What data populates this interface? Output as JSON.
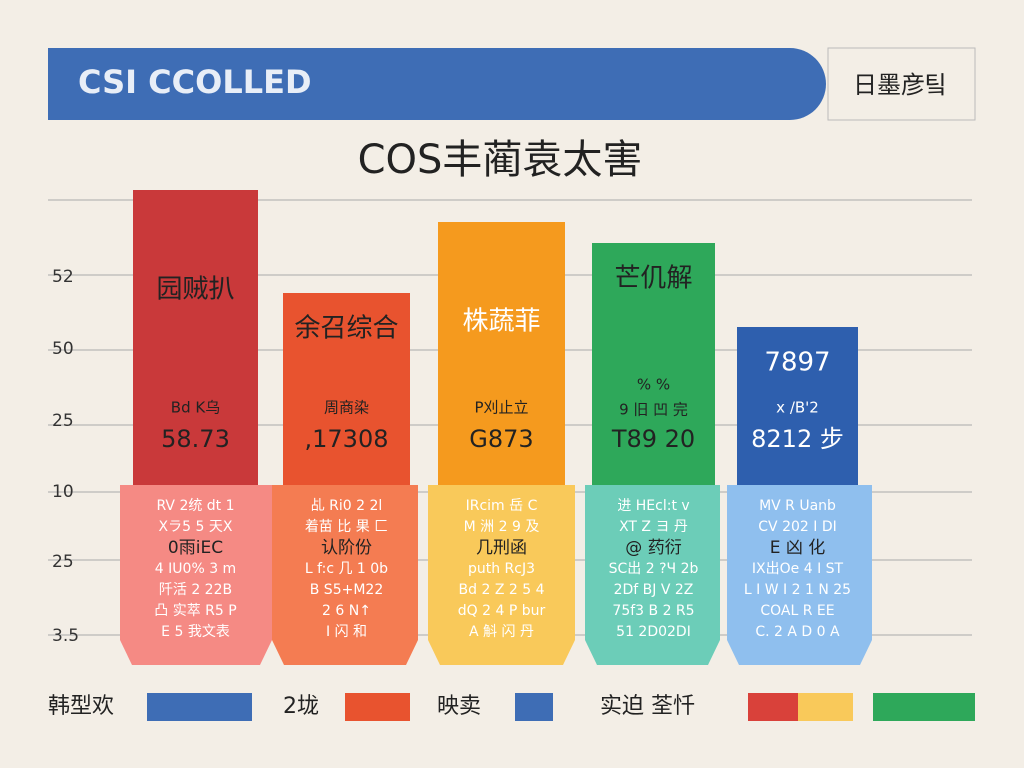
{
  "header": {
    "title": "CSI CCOLLED",
    "side": "日墨彦팈"
  },
  "title": "COS丰蔺袁太害",
  "axis_labels": [
    "52",
    "50",
    "25",
    "10",
    "25",
    "3.5"
  ],
  "bars": [
    {
      "label": "园贼扒",
      "sub": "Bd K乌",
      "figure": "58.73",
      "notes": [
        "RV 2统 dt 1",
        "Xラ5  5  天X",
        "0雨iEC",
        "4 IU0%  3 m",
        "阡活 2 22B",
        "凸 实萃  R5 P",
        "E 5 我文表"
      ]
    },
    {
      "label": "余召综合",
      "sub": "周商染",
      "figure": ",17308",
      "notes": [
        "乩 Ri0 2 2l",
        "着苗 比 果 匚",
        "认阶份",
        "L f:c  几 1 0b",
        "B S5+M22",
        "2  6 N↑",
        "I  闪 和"
      ]
    },
    {
      "label": "株蔬菲",
      "sub": "P刈止立",
      "figure": "G873",
      "notes": [
        "IRcim 岳 C",
        "M 洲 2 9 及",
        "几刑函",
        "puth  RcJ3",
        "Bd 2 Z 2 5 4",
        "dQ 2 4 P bur",
        "A 斛 闪 丹"
      ]
    },
    {
      "label": "芒仉解",
      "sub": "%  %",
      "figure": "T89 20",
      "sub2": "9 旧 凹 完",
      "notes": [
        "进 HEcl:t  v",
        "XT Z ヨ  丹",
        "@ 药衍",
        "SC出 2 ?Ч 2b",
        "2Df  BJ V  2Z",
        "75f3 B 2 R5",
        "51 2D02DI"
      ]
    },
    {
      "label": "7897",
      "sub": "x /B'2",
      "figure": "8212 步",
      "notes": [
        "MV R Uanb",
        "CV 202 I DI",
        "E 凶 化",
        "IX出Oe  4 I ST",
        "L I W I 2 1 N 25",
        "COAL  R  EE",
        "C. 2 A D 0 A"
      ]
    }
  ],
  "legend": [
    "韩型欢",
    "2垅",
    "映卖",
    "实迫  荃忏"
  ]
}
